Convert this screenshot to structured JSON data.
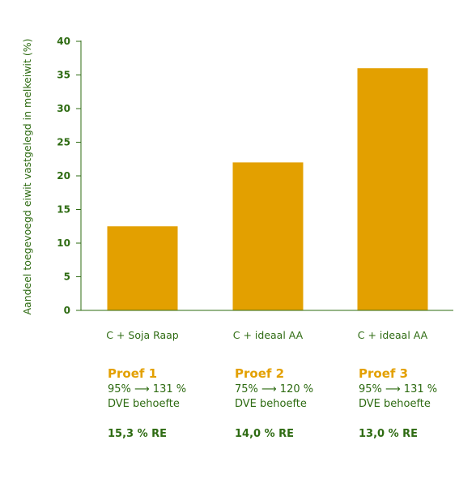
{
  "chart_data": {
    "type": "bar",
    "categories": [
      "C + Soja Raap",
      "C + ideaal AA",
      "C + ideaal AA"
    ],
    "values": [
      12.5,
      22,
      36
    ],
    "ylabel": "Aandeel toegevoegd eiwit vastgelegd in melkeiwit (%)",
    "ylim": [
      0,
      40
    ],
    "yticks": [
      0,
      5,
      10,
      15,
      20,
      25,
      30,
      35,
      40
    ],
    "bar_color": "#e3a000",
    "text_color": "#2e6b12",
    "grid": false
  },
  "trials": [
    {
      "name": "Proef 1",
      "line1": "95% ⟶ 131 %",
      "line2": "DVE behoefte",
      "re": "15,3 % RE"
    },
    {
      "name": "Proef 2",
      "line1": "75% ⟶ 120 %",
      "line2": "DVE behoefte",
      "re": "14,0 % RE"
    },
    {
      "name": "Proef 3",
      "line1": "95% ⟶ 131 %",
      "line2": "DVE behoefte",
      "re": "13,0 % RE"
    }
  ]
}
